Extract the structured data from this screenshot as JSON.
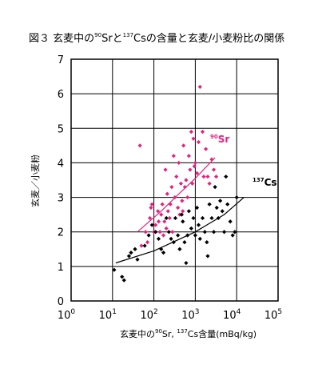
{
  "chart_data": {
    "type": "scatter",
    "title": "図３ 玄麦中の⁹⁰Srと¹³⁷Csの含量と玄麦/小麦粉比の関係",
    "title_parts": {
      "pre": "図３ 玄麦中の",
      "sup1": "90",
      "mid": "Srと",
      "sup2": "137",
      "post": "Csの含量と玄麦/小麦粉比の関係"
    },
    "xlabel": "玄麦中の⁹⁰Sr, ¹³⁷Cs含量(mBq/kg)",
    "xlabel_parts": {
      "pre": "玄麦中の",
      "sup1": "90",
      "mid": "Sr, ",
      "sup2": "137",
      "post": "Cs含量(mBq/kg)"
    },
    "ylabel": "玄麦／小麦粉",
    "x_scale": "log",
    "xlim": [
      1,
      100000
    ],
    "ylim": [
      0,
      7
    ],
    "grid": true,
    "x_ticks": [
      {
        "value": 1,
        "base": "10",
        "exp": "0"
      },
      {
        "value": 10,
        "base": "10",
        "exp": "1"
      },
      {
        "value": 100,
        "base": "10",
        "exp": "2"
      },
      {
        "value": 1000,
        "base": "10",
        "exp": "3"
      },
      {
        "value": 10000,
        "base": "10",
        "exp": "4"
      },
      {
        "value": 100000,
        "base": "10",
        "exp": "5"
      }
    ],
    "y_ticks": [
      "0",
      "1",
      "2",
      "3",
      "4",
      "5",
      "6",
      "7"
    ],
    "series": [
      {
        "name": "⁹⁰Sr",
        "label_sup": "90",
        "label_main": "Sr",
        "color": "#e8207e",
        "marker": "diamond",
        "points": [
          [
            46,
            4.5
          ],
          [
            50,
            1.6
          ],
          [
            63,
            2.0
          ],
          [
            70,
            1.7
          ],
          [
            80,
            2.4
          ],
          [
            85,
            2.7
          ],
          [
            90,
            2.8
          ],
          [
            100,
            2.0
          ],
          [
            110,
            2.2
          ],
          [
            125,
            2.6
          ],
          [
            130,
            2.3
          ],
          [
            140,
            2.0
          ],
          [
            150,
            2.5
          ],
          [
            160,
            2.8
          ],
          [
            170,
            1.9
          ],
          [
            180,
            2.3
          ],
          [
            190,
            3.8
          ],
          [
            200,
            2.1
          ],
          [
            210,
            3.1
          ],
          [
            220,
            2.6
          ],
          [
            240,
            2.4
          ],
          [
            250,
            2.8
          ],
          [
            270,
            3.3
          ],
          [
            280,
            2.0
          ],
          [
            300,
            4.2
          ],
          [
            320,
            3.0
          ],
          [
            350,
            3.6
          ],
          [
            380,
            2.7
          ],
          [
            400,
            4.0
          ],
          [
            420,
            2.5
          ],
          [
            450,
            3.4
          ],
          [
            480,
            2.9
          ],
          [
            520,
            4.5
          ],
          [
            560,
            3.3
          ],
          [
            600,
            3.5
          ],
          [
            650,
            3.0
          ],
          [
            700,
            4.2
          ],
          [
            750,
            3.8
          ],
          [
            800,
            4.9
          ],
          [
            850,
            3.4
          ],
          [
            900,
            4.7
          ],
          [
            950,
            3.9
          ],
          [
            1000,
            4.0
          ],
          [
            1100,
            3.7
          ],
          [
            1200,
            4.6
          ],
          [
            1300,
            6.2
          ],
          [
            1500,
            4.9
          ],
          [
            1600,
            3.6
          ],
          [
            1800,
            4.4
          ],
          [
            2000,
            3.6
          ],
          [
            2200,
            3.4
          ],
          [
            2500,
            4.1
          ],
          [
            2800,
            3.8
          ],
          [
            3200,
            3.6
          ],
          [
            500,
            2.6
          ]
        ],
        "trend": [
          [
            40,
            2.0
          ],
          [
            150,
            2.6
          ],
          [
            400,
            3.1
          ],
          [
            1000,
            3.55
          ],
          [
            3000,
            4.15
          ]
        ]
      },
      {
        "name": "¹³⁷Cs",
        "label_sup": "137",
        "label_main": "Cs",
        "color": "#000000",
        "marker": "diamond",
        "points": [
          [
            11,
            0.9
          ],
          [
            17,
            0.7
          ],
          [
            19,
            0.6
          ],
          [
            25,
            1.3
          ],
          [
            28,
            1.4
          ],
          [
            35,
            1.5
          ],
          [
            40,
            1.2
          ],
          [
            60,
            1.6
          ],
          [
            75,
            1.9
          ],
          [
            90,
            2.2
          ],
          [
            110,
            2.0
          ],
          [
            130,
            1.8
          ],
          [
            150,
            1.5
          ],
          [
            170,
            1.4
          ],
          [
            200,
            2.4
          ],
          [
            230,
            2.0
          ],
          [
            260,
            1.8
          ],
          [
            300,
            1.7
          ],
          [
            330,
            2.4
          ],
          [
            380,
            1.9
          ],
          [
            420,
            1.5
          ],
          [
            470,
            2.5
          ],
          [
            500,
            2.3
          ],
          [
            550,
            1.7
          ],
          [
            600,
            1.1
          ],
          [
            650,
            1.9
          ],
          [
            700,
            2.6
          ],
          [
            800,
            2.1
          ],
          [
            900,
            2.4
          ],
          [
            1000,
            1.9
          ],
          [
            1100,
            2.7
          ],
          [
            1200,
            2.2
          ],
          [
            1300,
            1.8
          ],
          [
            1500,
            2.4
          ],
          [
            1700,
            2.0
          ],
          [
            1900,
            1.7
          ],
          [
            2000,
            1.3
          ],
          [
            2200,
            2.8
          ],
          [
            2500,
            2.4
          ],
          [
            2800,
            2.0
          ],
          [
            3000,
            3.3
          ],
          [
            3300,
            2.7
          ],
          [
            3600,
            2.4
          ],
          [
            4000,
            2.9
          ],
          [
            4500,
            2.6
          ],
          [
            5000,
            2.0
          ],
          [
            5500,
            3.6
          ],
          [
            6000,
            2.8
          ],
          [
            7000,
            2.3
          ],
          [
            8000,
            1.9
          ],
          [
            9000,
            2.0
          ],
          [
            10000,
            3.0
          ]
        ],
        "trend": [
          [
            12,
            1.1
          ],
          [
            100,
            1.45
          ],
          [
            1000,
            2.0
          ],
          [
            5000,
            2.5
          ],
          [
            15000,
            3.0
          ]
        ]
      }
    ]
  }
}
